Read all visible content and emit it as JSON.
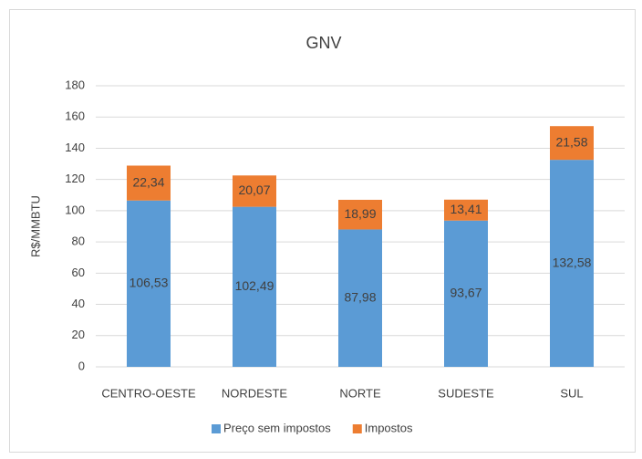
{
  "chart_data": {
    "type": "bar",
    "stacked": true,
    "title": "GNV",
    "y_label": "R$/MMBTU",
    "categories": [
      "CENTRO-OESTE",
      "NORDESTE",
      "NORTE",
      "SUDESTE",
      "SUL"
    ],
    "series": [
      {
        "name": "Preço sem impostos",
        "color": "#5b9bd5",
        "values": [
          106.53,
          102.49,
          87.98,
          93.67,
          132.58
        ],
        "value_labels": [
          "106,53",
          "102,49",
          "87,98",
          "93,67",
          "132,58"
        ]
      },
      {
        "name": "Impostos",
        "color": "#ed7d31",
        "values": [
          22.34,
          20.07,
          18.99,
          13.41,
          21.58
        ],
        "value_labels": [
          "22,34",
          "20,07",
          "18,99",
          "13,41",
          "21,58"
        ]
      }
    ],
    "ylim": [
      0,
      180
    ],
    "yticks": [
      0,
      20,
      40,
      60,
      80,
      100,
      120,
      140,
      160,
      180
    ],
    "grid": true,
    "legend": "bottom"
  }
}
